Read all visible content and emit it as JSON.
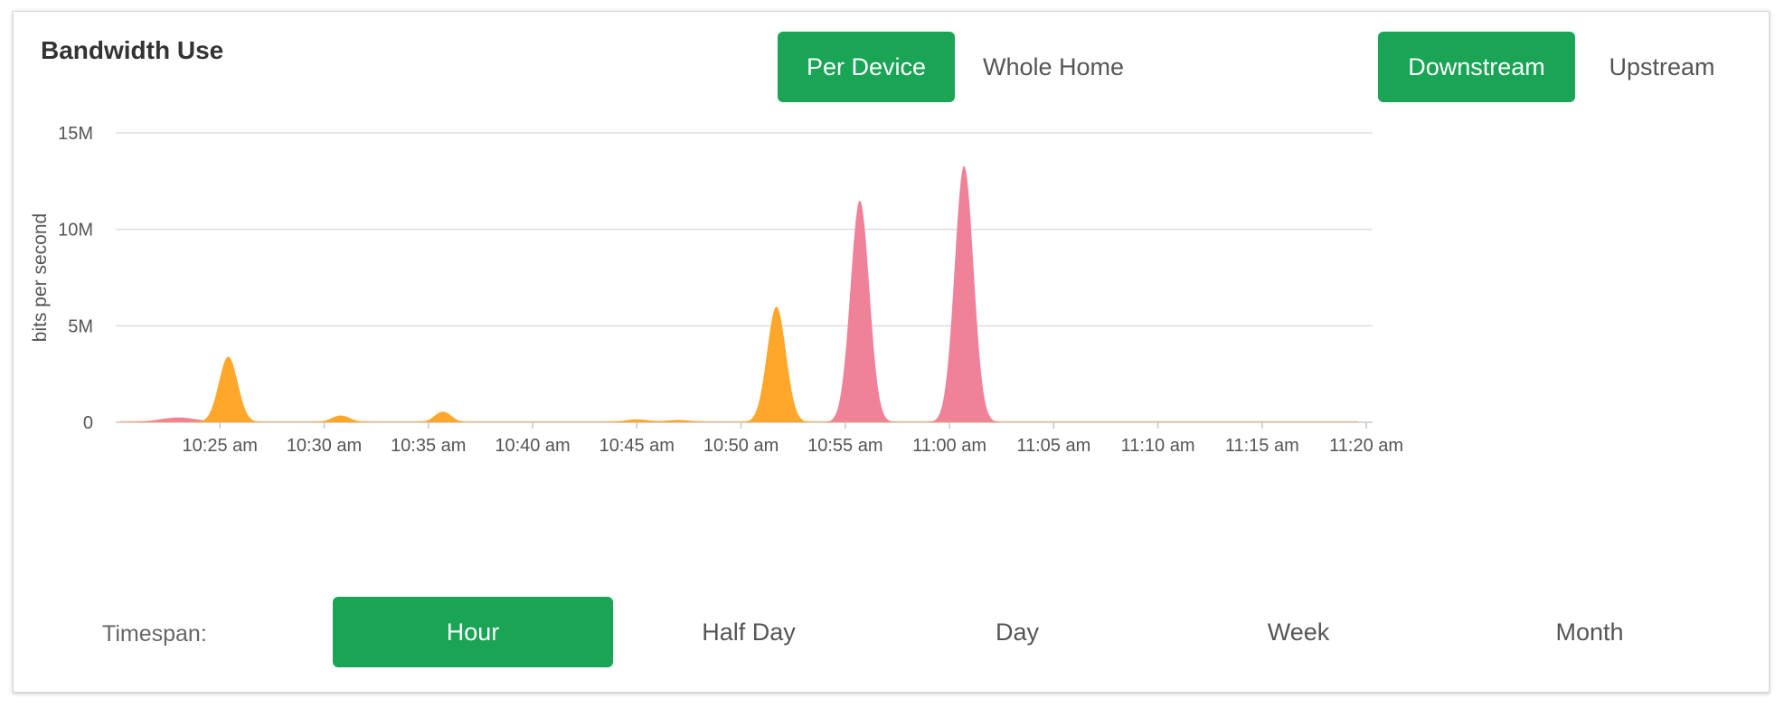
{
  "header": {
    "title": "Bandwidth Use",
    "view_toggle": [
      {
        "label": "Per Device",
        "active": true
      },
      {
        "label": "Whole Home",
        "active": false
      }
    ],
    "direction_toggle": [
      {
        "label": "Downstream",
        "active": true
      },
      {
        "label": "Upstream",
        "active": false
      }
    ]
  },
  "chart_data": {
    "type": "area",
    "xlabel": "",
    "ylabel": "bits per second",
    "y_ticks": [
      "0",
      "5M",
      "10M",
      "15M"
    ],
    "y_tick_values": [
      0,
      5000000,
      10000000,
      15000000
    ],
    "ylim": [
      0,
      15000000
    ],
    "x_ticks": [
      "10:25 am",
      "10:30 am",
      "10:35 am",
      "10:40 am",
      "10:45 am",
      "10:50 am",
      "10:55 am",
      "11:00 am",
      "11:05 am",
      "11:10 am",
      "11:15 am",
      "11:20 am"
    ],
    "x_tick_minutes": [
      5,
      10,
      15,
      20,
      25,
      30,
      35,
      40,
      45,
      50,
      55,
      60
    ],
    "xlim_minutes": [
      0,
      60.3
    ],
    "grid": true,
    "colors": {
      "orange": "#fea72b",
      "pink": "#ef8199",
      "grid": "#dddddd",
      "axis": "#c8c8c8"
    },
    "series": [
      {
        "color": "#ef8199",
        "peaks": [
          {
            "center": 3.0,
            "width": 0.9,
            "height": 250000
          },
          {
            "center": 10.9,
            "width": 0.6,
            "height": 60000
          },
          {
            "center": 35.7,
            "width": 0.45,
            "height": 11500000
          },
          {
            "center": 40.7,
            "width": 0.45,
            "height": 13300000
          }
        ]
      },
      {
        "color": "#fea72b",
        "peaks": [
          {
            "center": 5.4,
            "width": 0.45,
            "height": 3400000
          },
          {
            "center": 10.8,
            "width": 0.45,
            "height": 350000
          },
          {
            "center": 15.7,
            "width": 0.4,
            "height": 550000
          },
          {
            "center": 25.0,
            "width": 0.6,
            "height": 150000
          },
          {
            "center": 27.0,
            "width": 0.6,
            "height": 120000
          },
          {
            "center": 31.7,
            "width": 0.45,
            "height": 6000000
          }
        ]
      }
    ]
  },
  "timespan": {
    "label": "Timespan:",
    "options": [
      {
        "label": "Hour",
        "active": true
      },
      {
        "label": "Half Day",
        "active": false
      },
      {
        "label": "Day",
        "active": false
      },
      {
        "label": "Week",
        "active": false
      },
      {
        "label": "Month",
        "active": false
      }
    ]
  }
}
